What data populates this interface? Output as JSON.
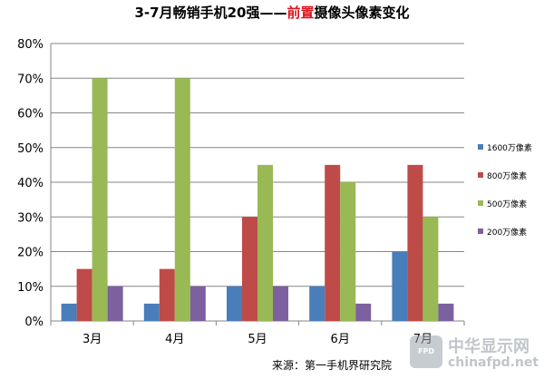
{
  "title_parts": {
    "prefix": "3-7月畅销手机20强——",
    "highlight": "前置",
    "suffix": "摄像头像素变化"
  },
  "source": "来源：第一手机界研究院",
  "watermark": {
    "badge": "FPD",
    "cn": "中华显示网",
    "en": "chinafpd.net"
  },
  "colors": {
    "accent_title": "#e0141e"
  },
  "chart_data": {
    "type": "bar",
    "categories": [
      "3月",
      "4月",
      "5月",
      "6月",
      "7月"
    ],
    "series": [
      {
        "name": "1600万像素",
        "color": "#4a7ebb",
        "values": [
          5,
          5,
          10,
          10,
          20
        ]
      },
      {
        "name": "800万像素",
        "color": "#be4b48",
        "values": [
          15,
          15,
          30,
          45,
          45
        ]
      },
      {
        "name": "500万像素",
        "color": "#98b954",
        "values": [
          70,
          70,
          45,
          40,
          30
        ]
      },
      {
        "name": "200万像素",
        "color": "#7d60a0",
        "values": [
          10,
          10,
          10,
          5,
          5
        ]
      }
    ],
    "y_ticks": [
      "0%",
      "10%",
      "20%",
      "30%",
      "40%",
      "50%",
      "60%",
      "70%",
      "80%"
    ],
    "ylim": [
      0,
      80
    ],
    "y_unit": "%",
    "grid": true,
    "legend_position": "right"
  }
}
